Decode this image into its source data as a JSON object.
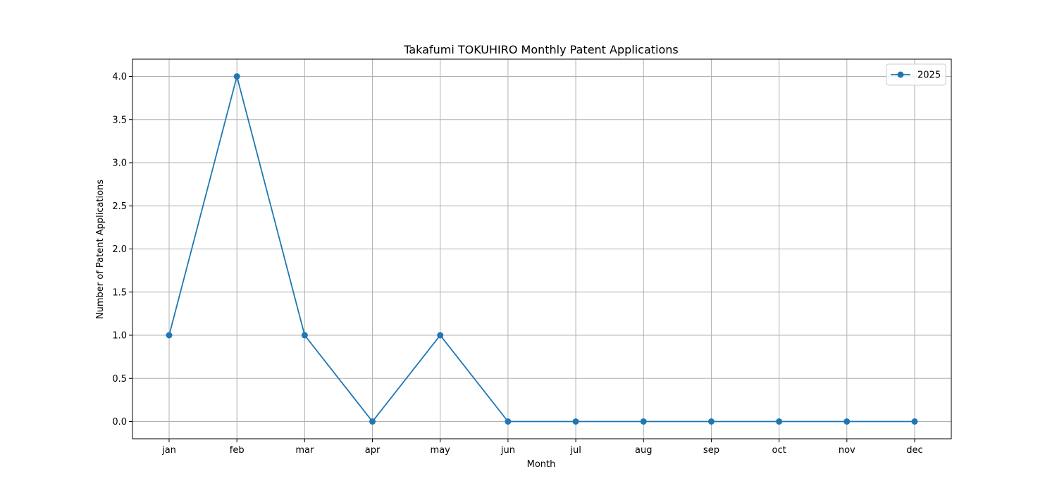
{
  "chart_data": {
    "type": "line",
    "title": "Takafumi TOKUHIRO Monthly Patent Applications",
    "xlabel": "Month",
    "ylabel": "Number of Patent Applications",
    "categories": [
      "jan",
      "feb",
      "mar",
      "apr",
      "may",
      "jun",
      "jul",
      "aug",
      "sep",
      "oct",
      "nov",
      "dec"
    ],
    "series": [
      {
        "name": "2025",
        "values": [
          1,
          4,
          1,
          0,
          1,
          0,
          0,
          0,
          0,
          0,
          0,
          0
        ],
        "color": "#1f77b4"
      }
    ],
    "ylim": [
      -0.2,
      4.2
    ],
    "yticks": [
      "0.0",
      "0.5",
      "1.0",
      "1.5",
      "2.0",
      "2.5",
      "3.0",
      "3.5",
      "4.0"
    ],
    "grid": true,
    "legend_position": "top-right",
    "grid_color": "#b0b0b0",
    "axis_color": "#000000"
  }
}
